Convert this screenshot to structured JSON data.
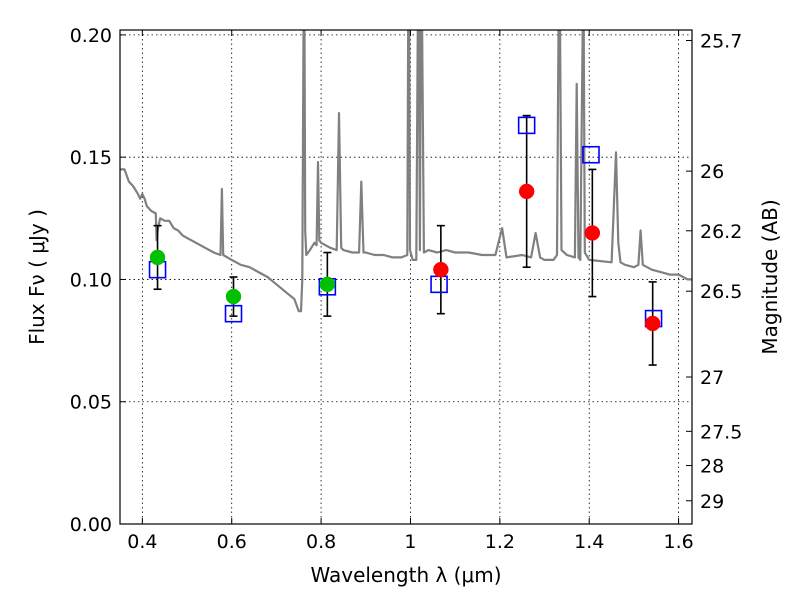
{
  "chart_data": {
    "type": "scatter",
    "xlabel": "Wavelength  λ (μm)",
    "ylabel": "Flux  Fν  ( μJy )",
    "y2label": "Magnitude (AB)",
    "xlim": [
      0.35,
      1.63
    ],
    "ylim": [
      0.0,
      0.202
    ],
    "grid": true,
    "x_ticks": [
      0.4,
      0.6,
      0.8,
      1.0,
      1.2,
      1.4,
      1.6
    ],
    "x_tick_labels": [
      "0.4",
      "0.6",
      "0.8",
      "1",
      "1.2",
      "1.4",
      "1.6"
    ],
    "y_ticks": [
      0.0,
      0.05,
      0.1,
      0.15,
      0.2
    ],
    "y_tick_labels": [
      "0.00",
      "0.05",
      "0.10",
      "0.15",
      "0.20"
    ],
    "y2_ticks": [
      {
        "flux": 0.1977,
        "label": "25.7"
      },
      {
        "flux": 0.1443,
        "label": "26"
      },
      {
        "flux": 0.1199,
        "label": "26.2"
      },
      {
        "flux": 0.0952,
        "label": "26.5"
      },
      {
        "flux": 0.0601,
        "label": "27"
      },
      {
        "flux": 0.0379,
        "label": "27.5"
      },
      {
        "flux": 0.0239,
        "label": "28"
      },
      {
        "flux": 0.0095,
        "label": "29"
      }
    ],
    "series": [
      {
        "kind": "spectrum",
        "color": "#808080",
        "x": [
          0.35,
          0.36,
          0.37,
          0.38,
          0.39,
          0.395,
          0.4,
          0.405,
          0.41,
          0.42,
          0.43,
          0.432,
          0.435,
          0.44,
          0.45,
          0.46,
          0.47,
          0.48,
          0.49,
          0.5,
          0.52,
          0.54,
          0.56,
          0.575,
          0.578,
          0.581,
          0.6,
          0.62,
          0.64,
          0.66,
          0.68,
          0.7,
          0.72,
          0.74,
          0.75,
          0.755,
          0.758,
          0.762,
          0.7645,
          0.767,
          0.775,
          0.785,
          0.79,
          0.793,
          0.796,
          0.8,
          0.82,
          0.835,
          0.84,
          0.845,
          0.85,
          0.87,
          0.885,
          0.89,
          0.895,
          0.9,
          0.92,
          0.94,
          0.96,
          0.98,
          0.993,
          0.996,
          0.999,
          1.005,
          1.013,
          1.018,
          1.021,
          1.024,
          1.03,
          1.04,
          1.06,
          1.08,
          1.1,
          1.13,
          1.16,
          1.19,
          1.205,
          1.215,
          1.25,
          1.27,
          1.28,
          1.29,
          1.3,
          1.32,
          1.328,
          1.333,
          1.338,
          1.35,
          1.368,
          1.372,
          1.376,
          1.38,
          1.387,
          1.39,
          1.4,
          1.45,
          1.46,
          1.465,
          1.47,
          1.48,
          1.5,
          1.51,
          1.515,
          1.52,
          1.54,
          1.56,
          1.58,
          1.6,
          1.62,
          1.63
        ],
        "y": [
          0.145,
          0.145,
          0.14,
          0.138,
          0.135,
          0.133,
          0.135,
          0.133,
          0.13,
          0.128,
          0.127,
          0.116,
          0.121,
          0.125,
          0.124,
          0.124,
          0.121,
          0.12,
          0.118,
          0.117,
          0.115,
          0.113,
          0.111,
          0.11,
          0.137,
          0.11,
          0.108,
          0.106,
          0.105,
          0.103,
          0.101,
          0.098,
          0.095,
          0.092,
          0.087,
          0.087,
          0.1,
          0.25,
          0.12,
          0.11,
          0.112,
          0.115,
          0.114,
          0.148,
          0.116,
          0.115,
          0.113,
          0.112,
          0.168,
          0.113,
          0.112,
          0.111,
          0.111,
          0.14,
          0.111,
          0.111,
          0.11,
          0.11,
          0.109,
          0.109,
          0.11,
          0.26,
          0.112,
          0.108,
          0.108,
          0.25,
          0.112,
          0.25,
          0.111,
          0.112,
          0.111,
          0.112,
          0.111,
          0.111,
          0.11,
          0.11,
          0.121,
          0.109,
          0.11,
          0.109,
          0.119,
          0.109,
          0.108,
          0.108,
          0.11,
          0.25,
          0.112,
          0.11,
          0.109,
          0.18,
          0.109,
          0.108,
          0.23,
          0.111,
          0.108,
          0.107,
          0.152,
          0.115,
          0.107,
          0.106,
          0.105,
          0.106,
          0.12,
          0.106,
          0.104,
          0.103,
          0.102,
          0.102,
          0.1,
          0.1
        ]
      },
      {
        "kind": "model-squares",
        "color": "#0000ff",
        "x": [
          0.434,
          0.604,
          0.814,
          1.064,
          1.26,
          1.404,
          1.544
        ],
        "y": [
          0.104,
          0.086,
          0.097,
          0.098,
          0.163,
          0.151,
          0.084
        ]
      },
      {
        "kind": "observed-green",
        "color": "#00c000",
        "x": [
          0.434,
          0.604,
          0.814
        ],
        "y": [
          0.109,
          0.093,
          0.098
        ],
        "err": [
          0.013,
          0.008,
          0.013
        ]
      },
      {
        "kind": "observed-red",
        "color": "#ff0000",
        "x": [
          1.068,
          1.26,
          1.407,
          1.542
        ],
        "y": [
          0.104,
          0.136,
          0.119,
          0.082
        ],
        "err": [
          0.018,
          0.031,
          0.026,
          0.017
        ]
      }
    ]
  }
}
